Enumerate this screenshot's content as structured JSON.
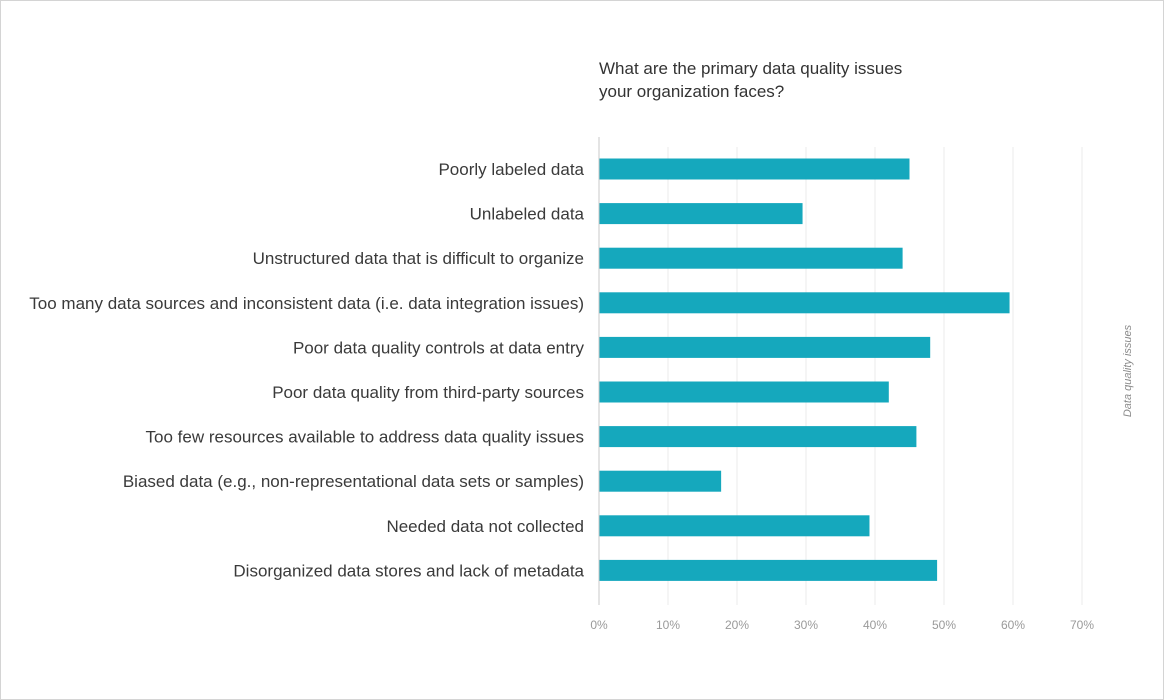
{
  "chart_data": {
    "type": "bar",
    "orientation": "horizontal",
    "title_lines": [
      "What are the primary data quality issues",
      "your organization faces?"
    ],
    "side_label": "Data quality issues",
    "categories": [
      "Poorly labeled data",
      "Unlabeled data",
      "Unstructured data that is difficult to organize",
      "Too many data sources and inconsistent data (i.e. data integration issues)",
      "Poor data quality controls at data entry",
      "Poor data quality from third-party sources",
      "Too few resources available to address data quality issues",
      "Biased data (e.g., non-representational data sets or samples)",
      "Needed data not collected",
      "Disorganized data stores and lack of metadata"
    ],
    "values": [
      45,
      29.5,
      44,
      59.5,
      48,
      42,
      46,
      17.7,
      39.2,
      49
    ],
    "xlim": [
      0,
      70
    ],
    "ticks": [
      "0%",
      "10%",
      "20%",
      "30%",
      "40%",
      "50%",
      "60%",
      "70%"
    ],
    "tick_values": [
      0,
      10,
      20,
      30,
      40,
      50,
      60,
      70
    ],
    "grid": true,
    "colors": {
      "bar": "#15a8bd",
      "grid": "#ebebeb",
      "axis": "#c8c8c8"
    }
  }
}
